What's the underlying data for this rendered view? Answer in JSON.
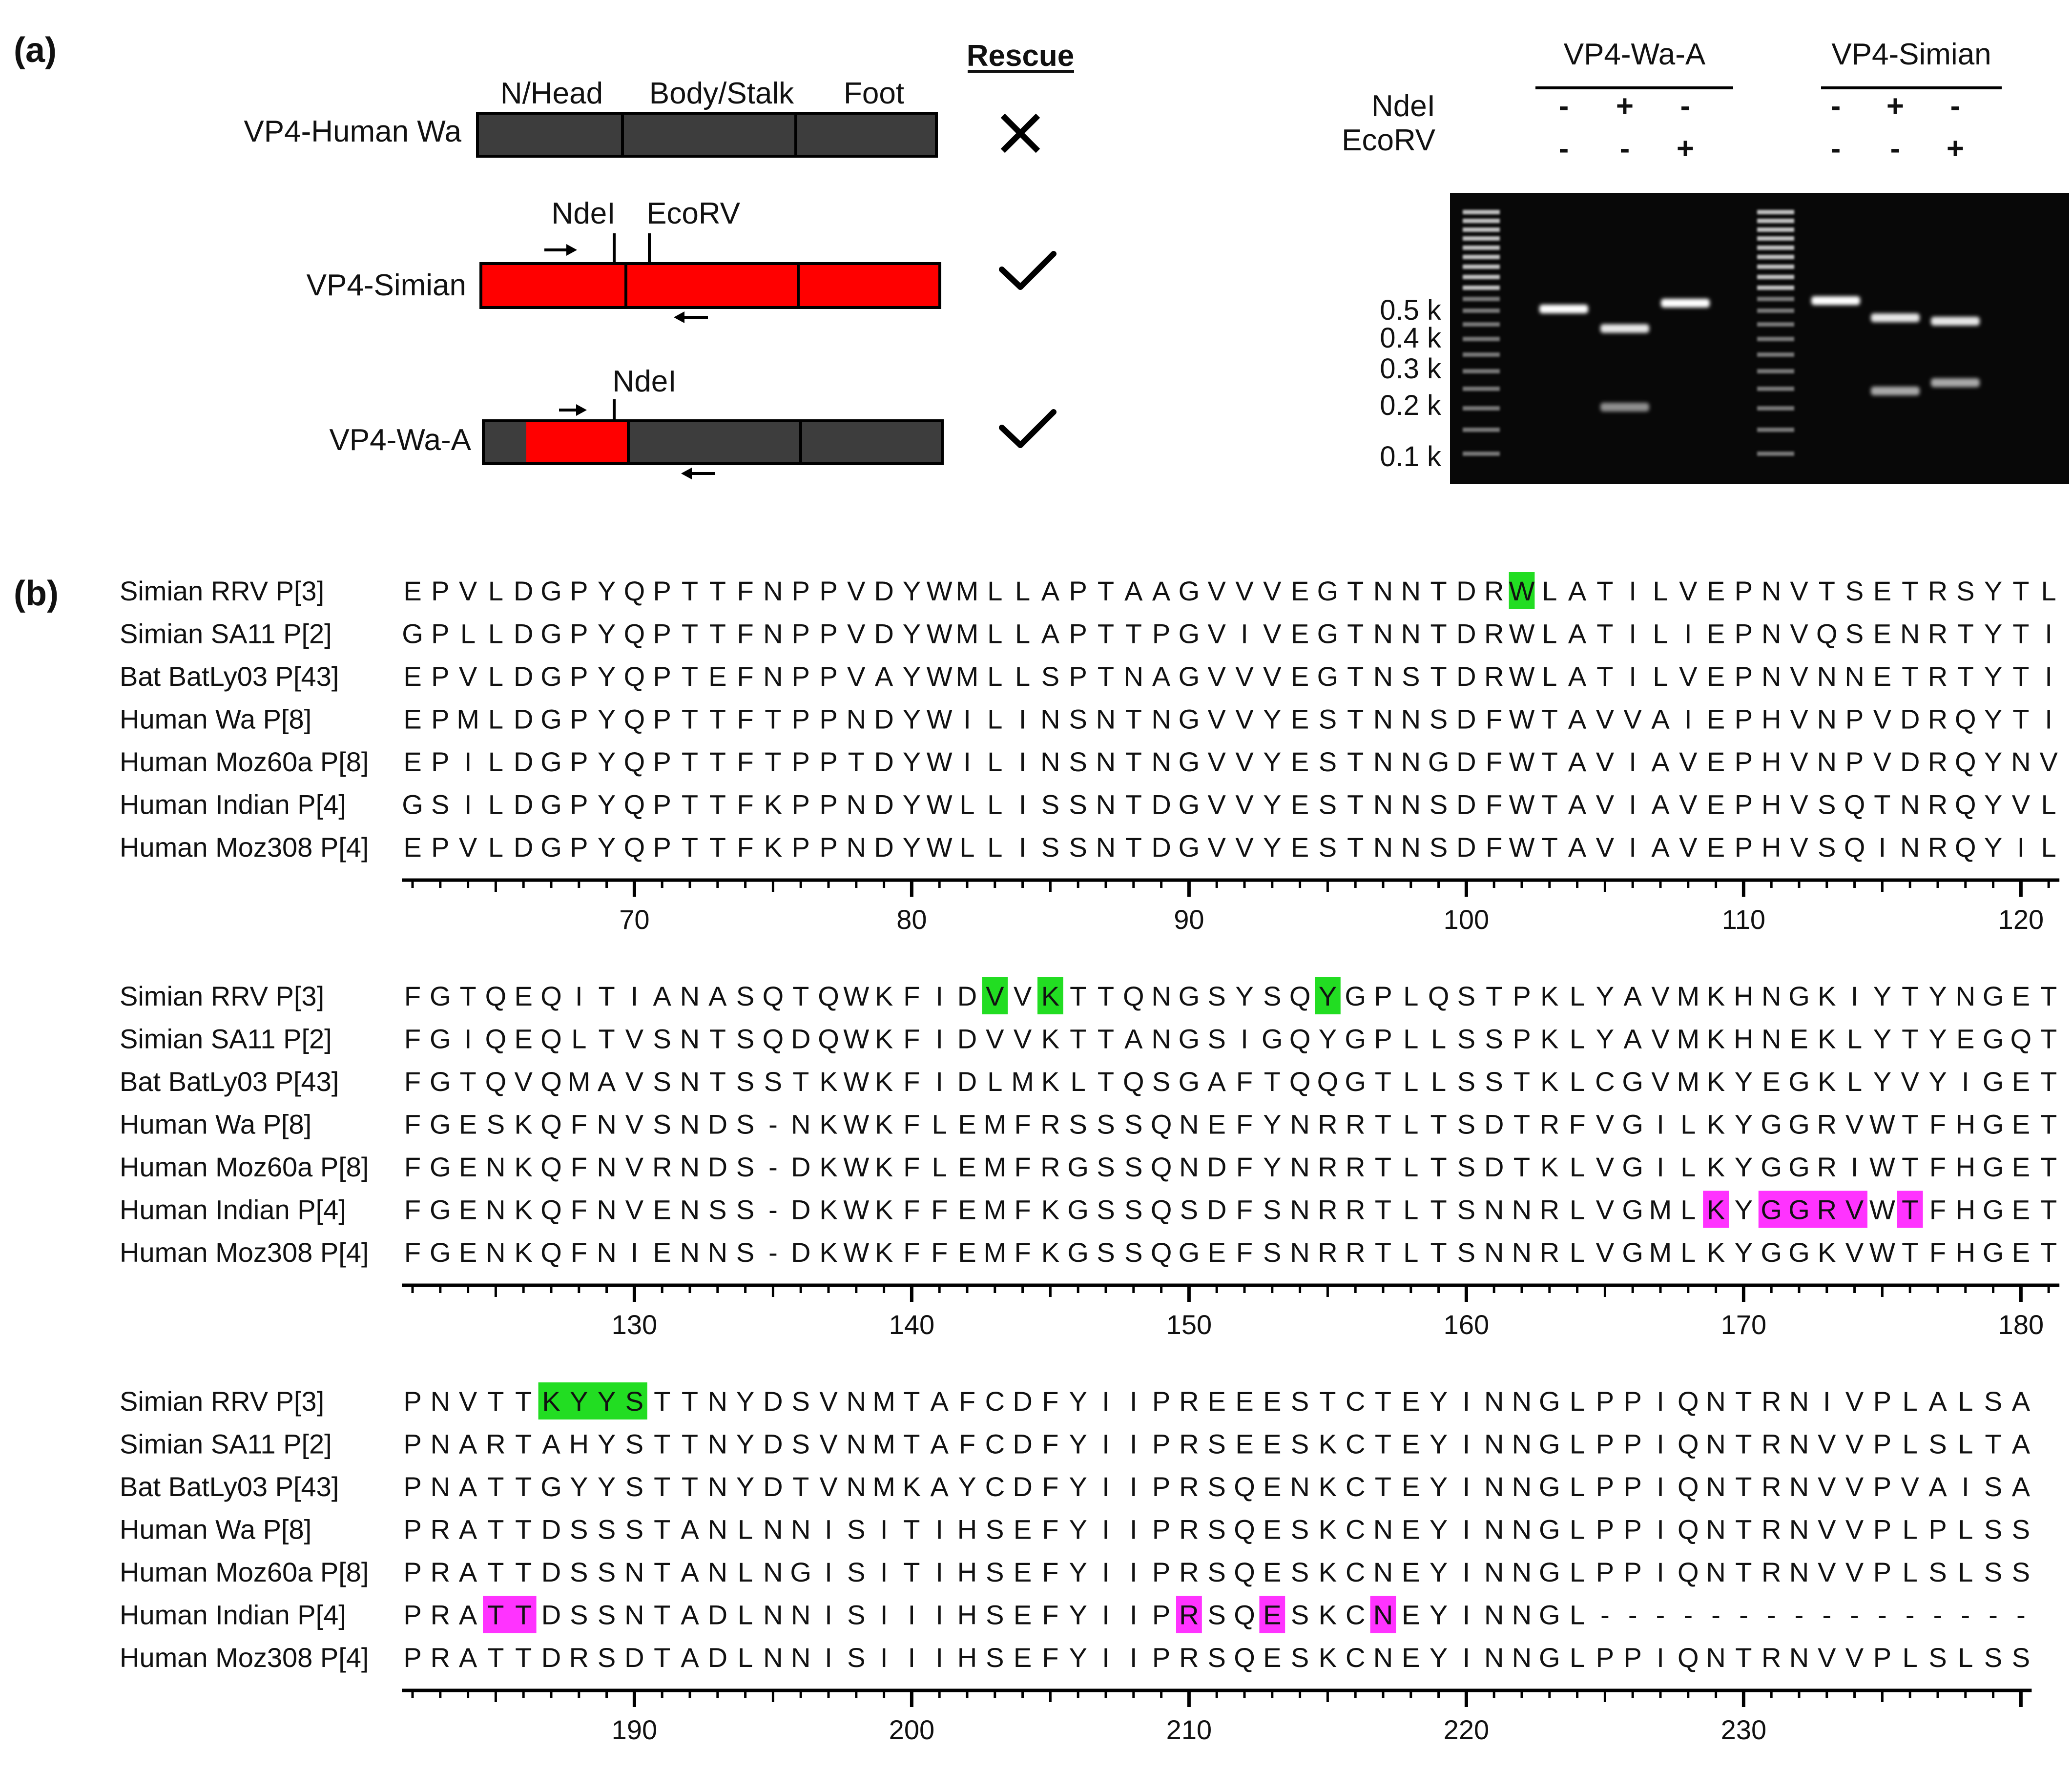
{
  "panel_a": {
    "label": "(a)",
    "domain_labels": [
      "N/Head",
      "Body/Stalk",
      "Foot"
    ],
    "rescue_header": "Rescue",
    "constructs": [
      {
        "name": "VP4-Human Wa",
        "rescue": "✕"
      },
      {
        "name": "VP4-Simian",
        "rescue": "✓",
        "sites": [
          "NdeI",
          "EcoRV"
        ]
      },
      {
        "name": "VP4-Wa-A",
        "rescue": "✓",
        "sites": [
          "NdeI"
        ]
      }
    ],
    "colors": {
      "dark_segment": "#3d3d3d",
      "red_segment": "#ff0000"
    }
  },
  "gel": {
    "groups": [
      "VP4-Wa-A",
      "VP4-Simian"
    ],
    "enzymes": [
      "NdeI",
      "EcoRV"
    ],
    "ndei_row": [
      "-",
      "+",
      "-",
      "-",
      "+",
      "-"
    ],
    "ecorv_row": [
      "-",
      "-",
      "+",
      "-",
      "-",
      "+"
    ],
    "ladder_labels": [
      "0.5 k",
      "0.4 k",
      "0.3 k",
      "0.2 k",
      "0.1 k"
    ]
  },
  "panel_b": {
    "label": "(b)",
    "highlight_colors": {
      "green": "#22dd22",
      "magenta": "#ff33ff"
    },
    "names": [
      "Simian RRV P[3]",
      "Simian SA11 P[2]",
      "Bat BatLy03 P[43]",
      "Human Wa P[8]",
      "Human Moz60a P[8]",
      "Human Indian P[4]",
      "Human Moz308 P[4]"
    ],
    "blocks": [
      {
        "start": 62,
        "ticks": [
          "70",
          "80",
          "90",
          "100",
          "110",
          "120"
        ],
        "seqs": [
          "EPVLDGPYQPTTFNPPVDYWMLLAPTAAGVVVEGTNNTDRWLATILVEPNVTSETRSYTL",
          "GPLLDGPYQPTTFNPPVDYWMLLAPTTPGVIVEGTNNTDRWLATILIEPNVQSENRTYTI",
          "EPVLDGPYQPTEFNPPVAYWMLLSPTNAGVVVEGTNSTDRWLATILVEPNVNNETRTYTI",
          "EPMLDGPYQPTTFTPPNDYWILINSNTNGVVYESTNNSDFWTAVVAIEPHVNPVDRQYTI",
          "EPILDGPYQPTTFTPPTDYWILINSNTNGVVYESTNNGDFWTAVIAVEPHVNPVDRQYNV",
          "GSILDGPYQPTTFKPPNDYWLLISSNTDGVVYESTNNSDFWTAVIAVEPHVSQTNRQYVL",
          "EPVLDGPYQPTTFKPPNDYWLLISSNTDGVVYESTNNSDFWTAVIAVEPHVSQINRQYIL"
        ],
        "highlights": [
          {
            "row": 0,
            "from": 40,
            "to": 40,
            "color": "green"
          }
        ]
      },
      {
        "start": 122,
        "ticks": [
          "130",
          "140",
          "150",
          "160",
          "170",
          "180"
        ],
        "seqs": [
          "FGTQEQITIANASQTQWKFIDVVKTTQNGSYSQYGPLQSTPKLYAVMKHNGKIYTYNGET",
          "FGIQEQLTVSNTSQDQWKFIDVVKTTANGSIGQYGPLLSSPKLYAVMKHNEKLYTYEGQT",
          "FGTQVQMAVSNTSSTKWKFIDLMKLTQSGAFTQQGTLLSSTKLCGVMKYEGKLYVYIGET",
          "FGESKQFNVSNDS-NKWKFLEMFRSSSQNEFYNRRTLTSDTRFVGILKYGGRVWTFHGET",
          "FGENKQFNVRNDS-DKWKFLEMFRGSSQNDFYNRRTLTSDTKLVGILKYGGRIWTFHGET",
          "FGENKQFNVENSS-DKWKFFEMFKGSSQSDFSNRRTLTSNNRLVGMLKYGGRVWTFHGET",
          "FGENKQFNIENNS-DKWKFFEMFKGSSQGEFSNRRTLTSNNRLVGMLKYGGKVWTFHGET"
        ],
        "highlights": [
          {
            "row": 0,
            "from": 21,
            "to": 21,
            "color": "green"
          },
          {
            "row": 0,
            "from": 23,
            "to": 23,
            "color": "green"
          },
          {
            "row": 0,
            "from": 33,
            "to": 33,
            "color": "green"
          },
          {
            "row": 5,
            "from": 47,
            "to": 47,
            "color": "magenta"
          },
          {
            "row": 5,
            "from": 49,
            "to": 52,
            "color": "magenta"
          },
          {
            "row": 5,
            "from": 54,
            "to": 54,
            "color": "magenta"
          }
        ]
      },
      {
        "start": 182,
        "ticks": [
          "190",
          "200",
          "210",
          "220",
          "230"
        ],
        "seqs": [
          "PNVTTKYYSTTNYDSVNMTAFCDFYIIPREEESTCTEYINNGLPPIQNTRNIVPLALSA",
          "PNARTAHYSTTNYDSVNMTAFCDFYIIPRSEESKCTEYINNGLPPIQNTRNVVPLSLTA",
          "PNATTGYYSTTNYDTVNMKAYCDFYIIPRSQENKCTEYINNGLPPIQNTRNVVPVAISA",
          "PRATTDSSSTANLNNISITIHSEFYIIPRSQESKCNEYINNGLPPIQNTRNVVPLPLSS",
          "PRATTDSSNTANLNGISITIHSEFYIIPRSQESKCNEYINNGLPPIQNTRNVVPLSLSS",
          "PRATTDSSNTADLNNISIIIHSEFYIIPRSQESKCNEYINNGL----------------",
          "PRATTDRSDTADLNNISIIIHSEFYIIPRSQESKCNEYINNGLPPIQNTRNVVPLSLSS"
        ],
        "highlights": [
          {
            "row": 0,
            "from": 5,
            "to": 8,
            "color": "green"
          },
          {
            "row": 5,
            "from": 3,
            "to": 4,
            "color": "magenta"
          },
          {
            "row": 5,
            "from": 28,
            "to": 28,
            "color": "magenta"
          },
          {
            "row": 5,
            "from": 31,
            "to": 31,
            "color": "magenta"
          },
          {
            "row": 5,
            "from": 35,
            "to": 35,
            "color": "magenta"
          }
        ]
      }
    ]
  }
}
